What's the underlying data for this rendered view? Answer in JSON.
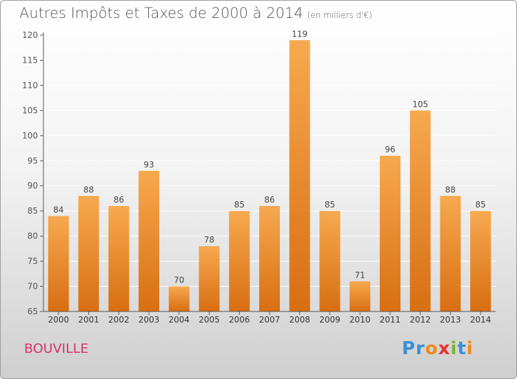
{
  "title": "Autres Impôts et Taxes de 2000 à 2014",
  "title_unit": "(en milliers d'€)",
  "city": "BOUVILLE",
  "brand": {
    "text": "Proxiti",
    "letter_colors": [
      "#3a8fd6",
      "#3a8fd6",
      "#f08a1c",
      "#e8312f",
      "#7ab52a",
      "#3a8fd6",
      "#f08a1c"
    ]
  },
  "colors": {
    "bar_light": "#f7a94f",
    "bar_dark": "#d86e12",
    "axis": "#555555",
    "grid": "#ffffff"
  },
  "chart_data": {
    "type": "bar",
    "categories": [
      "2000",
      "2001",
      "2002",
      "2003",
      "2004",
      "2005",
      "2006",
      "2007",
      "2008",
      "2009",
      "2010",
      "2011",
      "2012",
      "2013",
      "2014"
    ],
    "values": [
      84,
      88,
      86,
      93,
      70,
      78,
      85,
      86,
      119,
      85,
      71,
      96,
      105,
      88,
      85
    ],
    "ylim": [
      65,
      120
    ],
    "yticks": [
      65,
      70,
      75,
      80,
      85,
      90,
      95,
      100,
      105,
      110,
      115,
      120
    ],
    "grid": true,
    "data_labels": true
  }
}
